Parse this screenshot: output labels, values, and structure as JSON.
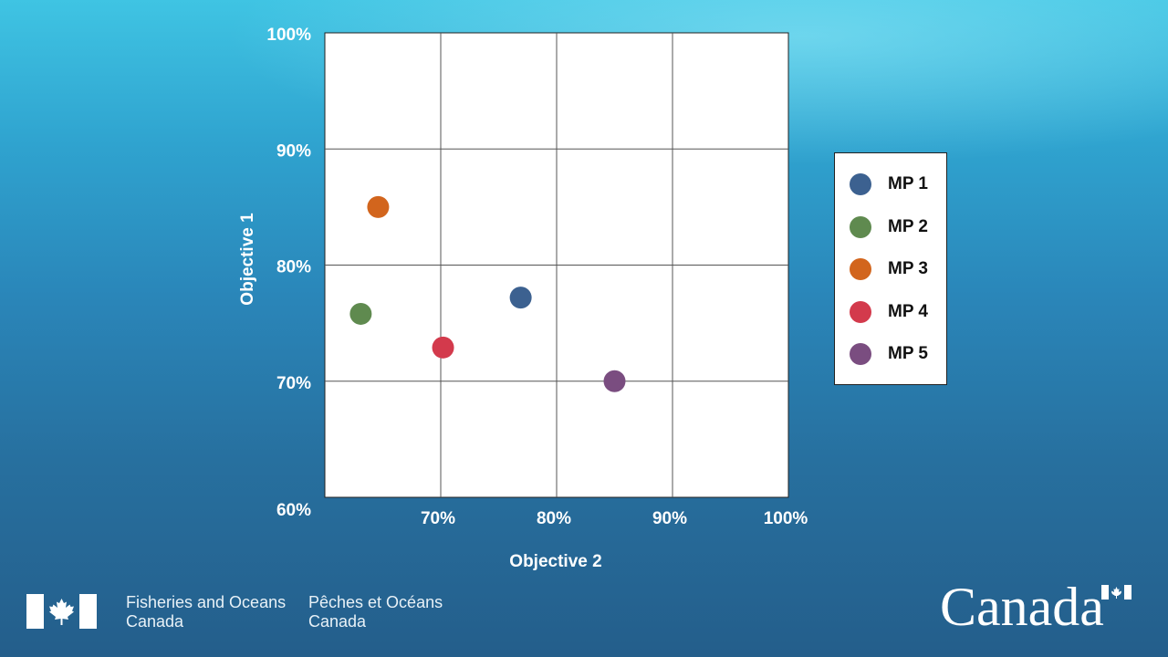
{
  "chart_data": {
    "type": "scatter",
    "xlabel": "Objective 2",
    "ylabel": "Objective 1",
    "xlim": [
      60,
      100
    ],
    "ylim": [
      60,
      100
    ],
    "x_ticks": [
      "70%",
      "80%",
      "90%",
      "100%"
    ],
    "y_ticks": [
      "60%",
      "70%",
      "80%",
      "90%",
      "100%"
    ],
    "grid": true,
    "legend_position": "right",
    "series": [
      {
        "name": "MP 1",
        "color": "#3c6190",
        "x": 76.9,
        "y": 77.2
      },
      {
        "name": "MP 2",
        "color": "#5f8a4f",
        "x": 63.1,
        "y": 75.8
      },
      {
        "name": "MP 3",
        "color": "#d2651d",
        "x": 64.6,
        "y": 85.0
      },
      {
        "name": "MP 4",
        "color": "#d33a4c",
        "x": 70.2,
        "y": 72.9
      },
      {
        "name": "MP 5",
        "color": "#7a4d80",
        "x": 85.0,
        "y": 70.0
      }
    ]
  },
  "footer": {
    "dept_en_line1": "Fisheries and Oceans",
    "dept_en_line2": "Canada",
    "dept_fr_line1": "Pêches et Océans",
    "dept_fr_line2": "Canada",
    "wordmark": "Canada"
  }
}
